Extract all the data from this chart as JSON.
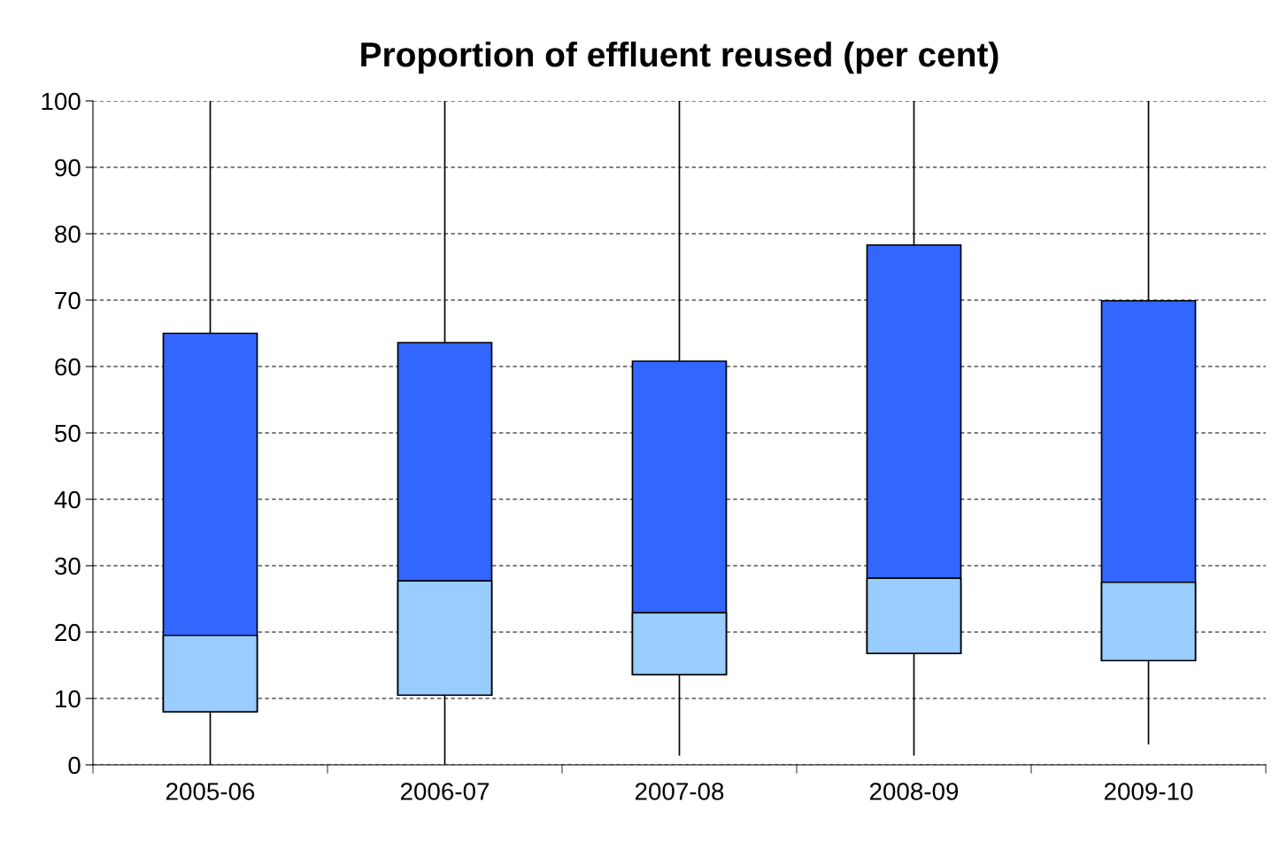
{
  "chart_data": {
    "type": "box",
    "title": "Proportion of effluent reused (per cent)",
    "categories": [
      "2005-06",
      "2006-07",
      "2007-08",
      "2008-09",
      "2009-10"
    ],
    "colors": [
      [
        "#99ccff",
        "#3366ff"
      ],
      [
        "#99ccff",
        "#3366ff"
      ],
      [
        "#99ccff",
        "#3366ff"
      ],
      [
        "#99ccff",
        "#3366ff"
      ],
      [
        "#99ccff",
        "#3366ff"
      ]
    ],
    "boxes": [
      {
        "low": 0,
        "q1": 8,
        "median": 19.5,
        "q3": 65,
        "high": 100
      },
      {
        "low": 0,
        "q1": 10.5,
        "median": 27.7,
        "q3": 63.6,
        "high": 100
      },
      {
        "low": 1.5,
        "q1": 13.6,
        "median": 22.9,
        "q3": 60.8,
        "high": 100
      },
      {
        "low": 1.5,
        "q1": 16.8,
        "median": 28.1,
        "q3": 78.3,
        "high": 100
      },
      {
        "low": 3.2,
        "q1": 15.7,
        "median": 27.5,
        "q3": 69.9,
        "high": 100
      }
    ],
    "ylim": [
      0,
      100
    ],
    "yticks": [
      0,
      10,
      20,
      30,
      40,
      50,
      60,
      70,
      80,
      90,
      100
    ],
    "grid": "y"
  }
}
